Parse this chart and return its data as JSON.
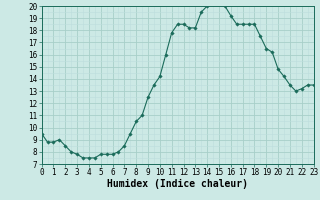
{
  "x": [
    0,
    0.5,
    1,
    1.5,
    2,
    2.5,
    3,
    3.5,
    4,
    4.5,
    5,
    5.5,
    6,
    6.5,
    7,
    7.5,
    8,
    8.5,
    9,
    9.5,
    10,
    10.5,
    11,
    11.5,
    12,
    12.5,
    13,
    13.5,
    14,
    14.5,
    15,
    15.5,
    16,
    16.5,
    17,
    17.5,
    18,
    18.5,
    19,
    19.5,
    20,
    20.5,
    21,
    21.5,
    22,
    22.5,
    23
  ],
  "y": [
    9.5,
    8.8,
    8.8,
    9.0,
    8.5,
    8.0,
    7.8,
    7.5,
    7.5,
    7.5,
    7.8,
    7.8,
    7.8,
    8.0,
    8.5,
    9.5,
    10.5,
    11.0,
    12.5,
    13.5,
    14.2,
    16.0,
    17.8,
    18.5,
    18.5,
    18.2,
    18.2,
    19.5,
    20.0,
    20.2,
    20.5,
    20.0,
    19.2,
    18.5,
    18.5,
    18.5,
    18.5,
    17.5,
    16.5,
    16.2,
    14.8,
    14.2,
    13.5,
    13.0,
    13.2,
    13.5,
    13.5
  ],
  "line_color": "#1a6b5a",
  "marker": "D",
  "marker_size": 1.8,
  "bg_color": "#cce9e5",
  "grid_major_color": "#a8cfc9",
  "grid_minor_color": "#bcdedd",
  "xlabel": "Humidex (Indice chaleur)",
  "xlim": [
    0,
    23
  ],
  "ylim": [
    7,
    20
  ],
  "yticks": [
    7,
    8,
    9,
    10,
    11,
    12,
    13,
    14,
    15,
    16,
    17,
    18,
    19,
    20
  ],
  "xticks": [
    0,
    1,
    2,
    3,
    4,
    5,
    6,
    7,
    8,
    9,
    10,
    11,
    12,
    13,
    14,
    15,
    16,
    17,
    18,
    19,
    20,
    21,
    22,
    23
  ],
  "tick_fontsize": 5.5,
  "xlabel_fontsize": 7.0
}
